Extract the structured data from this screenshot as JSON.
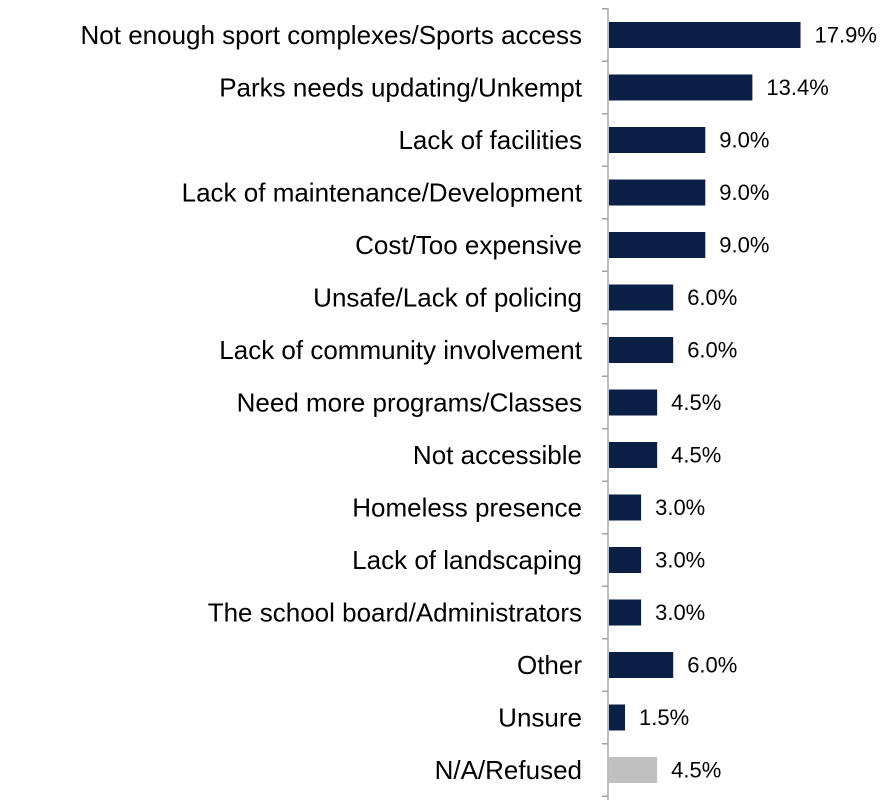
{
  "chart_data": {
    "type": "bar",
    "orientation": "horizontal",
    "title": "",
    "xlabel": "",
    "ylabel": "",
    "grid": false,
    "categories": [
      "Not enough sport complexes/Sports access",
      "Parks needs updating/Unkempt",
      "Lack of facilities",
      "Lack of maintenance/Development",
      "Cost/Too expensive",
      "Unsafe/Lack of policing",
      "Lack of community involvement",
      "Need more programs/Classes",
      "Not accessible",
      "Homeless presence",
      "Lack of landscaping",
      "The school board/Administrators",
      "Other",
      "Unsure",
      "N/A/Refused"
    ],
    "values": [
      17.9,
      13.4,
      9.0,
      9.0,
      9.0,
      6.0,
      6.0,
      4.5,
      4.5,
      3.0,
      3.0,
      3.0,
      6.0,
      1.5,
      4.5
    ],
    "value_labels": [
      "17.9%",
      "13.4%",
      "9.0%",
      "9.0%",
      "9.0%",
      "6.0%",
      "6.0%",
      "4.5%",
      "4.5%",
      "3.0%",
      "3.0%",
      "3.0%",
      "6.0%",
      "1.5%",
      "4.5%"
    ],
    "bar_colors": [
      "#0b1f45",
      "#0b1f45",
      "#0b1f45",
      "#0b1f45",
      "#0b1f45",
      "#0b1f45",
      "#0b1f45",
      "#0b1f45",
      "#0b1f45",
      "#0b1f45",
      "#0b1f45",
      "#0b1f45",
      "#0b1f45",
      "#0b1f45",
      "#c0c0c0"
    ],
    "axis_color": "#a6a6a6",
    "xlim": [
      0,
      20
    ]
  }
}
